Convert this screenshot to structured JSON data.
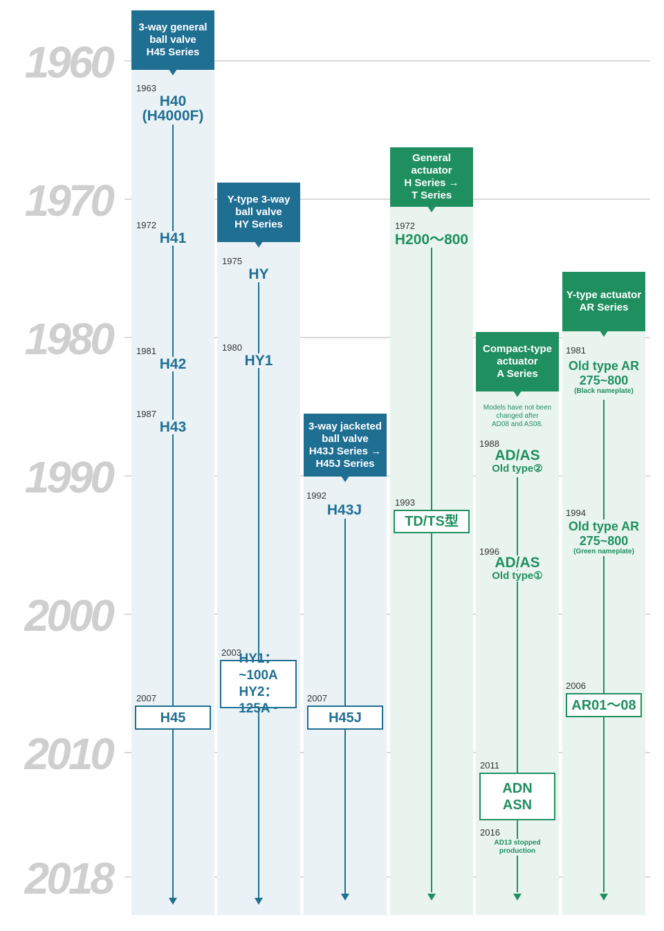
{
  "decades": [
    "1960",
    "1970",
    "1980",
    "1990",
    "2000",
    "2010",
    "2018"
  ],
  "colors": {
    "blue": "#1f6f93",
    "green": "#1f8f5f",
    "grid": "#d9d9d9",
    "decade": "#cfcfcf"
  },
  "columns": [
    {
      "header": [
        "3-way general",
        "ball valve",
        "H45 Series"
      ],
      "events": [
        {
          "year": "1963",
          "model": [
            "H40",
            "(H4000F)"
          ]
        },
        {
          "year": "1972",
          "model": [
            "H41"
          ]
        },
        {
          "year": "1981",
          "model": [
            "H42"
          ]
        },
        {
          "year": "1987",
          "model": [
            "H43"
          ]
        },
        {
          "year": "2007",
          "box": [
            "H45"
          ]
        }
      ]
    },
    {
      "header": [
        "Y-type 3-way",
        "ball valve",
        "HY Series"
      ],
      "events": [
        {
          "year": "1975",
          "model": [
            "HY"
          ]
        },
        {
          "year": "1980",
          "model": [
            "HY1"
          ]
        },
        {
          "year": "2003",
          "box": [
            "HY1：~100A",
            "HY2：125A~"
          ]
        }
      ]
    },
    {
      "header": [
        "3-way jacketed",
        "ball valve",
        "H43J Series →",
        "H45J Series"
      ],
      "events": [
        {
          "year": "1992",
          "model": [
            "H43J"
          ]
        },
        {
          "year": "2007",
          "box": [
            "H45J"
          ]
        }
      ]
    },
    {
      "header": [
        "General",
        "actuator",
        "H Series →",
        "T Series"
      ],
      "events": [
        {
          "year": "1972",
          "model": [
            "H200～800"
          ]
        },
        {
          "year": "1993",
          "box": [
            "TD/TS型"
          ]
        }
      ]
    },
    {
      "header": [
        "Compact-type",
        "actuator",
        "A Series"
      ],
      "note": [
        "Models have not been",
        "changed after",
        "AD08 and AS08."
      ],
      "events": [
        {
          "year": "1988",
          "model": [
            "AD/AS"
          ],
          "sub": "Old type②"
        },
        {
          "year": "1996",
          "model": [
            "AD/AS"
          ],
          "sub": "Old type①"
        },
        {
          "year": "2011",
          "box": [
            "ADN",
            "ASN"
          ]
        },
        {
          "year": "2016",
          "small": [
            "AD13 stopped",
            "production"
          ]
        }
      ]
    },
    {
      "header": [
        "Y-type actuator",
        "AR Series"
      ],
      "events": [
        {
          "year": "1981",
          "model": [
            "Old type AR",
            "275~800"
          ],
          "small": "(Black nameplate)"
        },
        {
          "year": "1994",
          "model": [
            "Old type AR",
            "275~800"
          ],
          "small": "(Green nameplate)"
        },
        {
          "year": "2006",
          "box": [
            "AR01～08"
          ]
        }
      ]
    }
  ]
}
